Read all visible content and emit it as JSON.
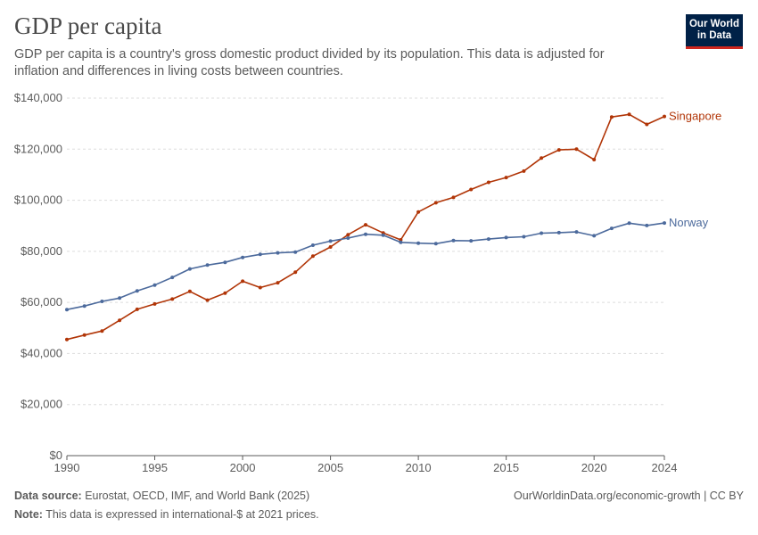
{
  "header": {
    "title": "GDP per capita",
    "subtitle": "GDP per capita is a country's gross domestic product divided by its population. This data is adjusted for inflation and differences in living costs between countries.",
    "logo_line1": "Our World",
    "logo_line2": "in Data"
  },
  "footer": {
    "source_label": "Data source:",
    "source_text": "Eurostat, OECD, IMF, and World Bank (2025)",
    "note_label": "Note:",
    "note_text": "This data is expressed in international-$ at 2021 prices.",
    "url_text": "OurWorldinData.org/economic-growth | CC BY"
  },
  "colors": {
    "singapore": "#b13507",
    "norway": "#4c6a9c",
    "grid": "#dddddd",
    "axis": "#5b5b5b"
  },
  "chart_data": {
    "type": "line",
    "title": "GDP per capita",
    "ylim": [
      0,
      140000
    ],
    "xlim": [
      1990,
      2024
    ],
    "y_ticks": [
      0,
      20000,
      40000,
      60000,
      80000,
      100000,
      120000,
      140000
    ],
    "y_tick_labels": [
      "$0",
      "$20,000",
      "$40,000",
      "$60,000",
      "$80,000",
      "$100,000",
      "$120,000",
      "$140,000"
    ],
    "x_ticks": [
      1990,
      1995,
      2000,
      2005,
      2010,
      2015,
      2020,
      2024
    ],
    "x_tick_labels": [
      "1990",
      "1995",
      "2000",
      "2005",
      "2010",
      "2015",
      "2020",
      "2024"
    ],
    "grid": "horizontal dashed",
    "legend": "inline labels at line ends",
    "x": [
      1990,
      1991,
      1992,
      1993,
      1994,
      1995,
      1996,
      1997,
      1998,
      1999,
      2000,
      2001,
      2002,
      2003,
      2004,
      2005,
      2006,
      2007,
      2008,
      2009,
      2010,
      2011,
      2012,
      2013,
      2014,
      2015,
      2016,
      2017,
      2018,
      2019,
      2020,
      2021,
      2022,
      2023,
      2024
    ],
    "series": [
      {
        "name": "Singapore",
        "color": "#b13507",
        "values": [
          45500,
          47200,
          48800,
          53000,
          57300,
          59400,
          61300,
          64300,
          60900,
          63600,
          68300,
          65800,
          67700,
          71800,
          78100,
          81700,
          86500,
          90400,
          87200,
          84500,
          95400,
          99000,
          101100,
          104200,
          107000,
          108900,
          111400,
          116500,
          119700,
          120000,
          115900,
          132600,
          133600,
          129700,
          132800
        ]
      },
      {
        "name": "Norway",
        "color": "#4c6a9c",
        "values": [
          57200,
          58600,
          60400,
          61700,
          64500,
          66800,
          69800,
          73100,
          74600,
          75700,
          77600,
          78800,
          79400,
          79700,
          82400,
          84000,
          85200,
          86700,
          86300,
          83500,
          83200,
          83000,
          84200,
          84100,
          84800,
          85400,
          85700,
          87100,
          87300,
          87600,
          86100,
          89000,
          91000,
          90100,
          91100
        ]
      }
    ]
  }
}
